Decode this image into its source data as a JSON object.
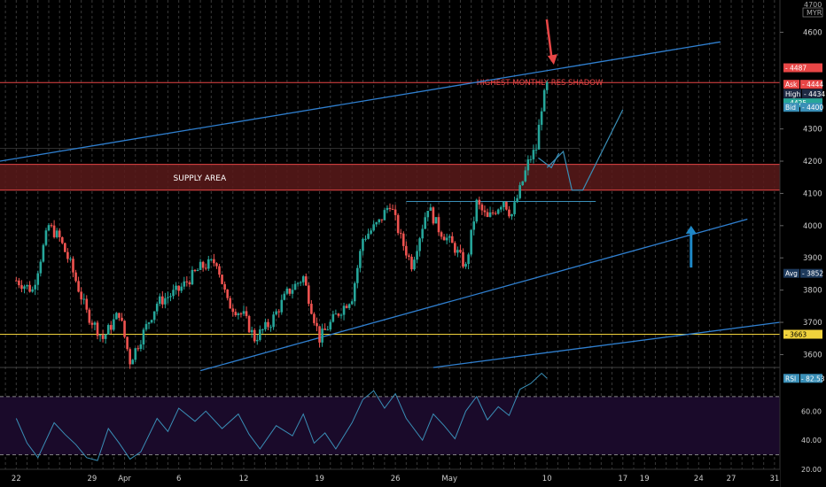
{
  "chart_data": [
    {
      "type": "candlestick",
      "panel": "price",
      "currency": "MYR",
      "axis_top_label": "4700",
      "ylim": [
        3560,
        4700
      ],
      "yticks": [
        3600,
        3700,
        3800,
        3900,
        4000,
        4100,
        4200,
        4300,
        4400,
        4500,
        4600
      ],
      "xticks": [
        {
          "label": "22",
          "day": 0
        },
        {
          "label": "29",
          "day": 7
        },
        {
          "label": "Apr",
          "day": 10
        },
        {
          "label": "6",
          "day": 15
        },
        {
          "label": "12",
          "day": 21
        },
        {
          "label": "19",
          "day": 28
        },
        {
          "label": "26",
          "day": 35
        },
        {
          "label": "May",
          "day": 40
        },
        {
          "label": "10",
          "day": 49
        },
        {
          "label": "17",
          "day": 56
        },
        {
          "label": "19",
          "day": 58
        },
        {
          "label": "24",
          "day": 63
        },
        {
          "label": "27",
          "day": 66
        },
        {
          "label": "31",
          "day": 70
        }
      ],
      "price_series": [
        [
          0,
          3830
        ],
        [
          1.5,
          3800
        ],
        [
          3,
          4000
        ],
        [
          4,
          3960
        ],
        [
          5,
          3880
        ],
        [
          6.5,
          3730
        ],
        [
          8,
          3650
        ],
        [
          9.5,
          3730
        ],
        [
          10.5,
          3580
        ],
        [
          11.5,
          3650
        ],
        [
          13,
          3760
        ],
        [
          15,
          3800
        ],
        [
          17,
          3870
        ],
        [
          18.5,
          3890
        ],
        [
          19.5,
          3760
        ],
        [
          21,
          3720
        ],
        [
          22,
          3650
        ],
        [
          23.5,
          3700
        ],
        [
          25,
          3790
        ],
        [
          26.5,
          3840
        ],
        [
          28,
          3650
        ],
        [
          29.5,
          3720
        ],
        [
          31,
          3780
        ],
        [
          32,
          3960
        ],
        [
          33.5,
          4010
        ],
        [
          34.5,
          4070
        ],
        [
          35.5,
          3960
        ],
        [
          36.5,
          3880
        ],
        [
          38,
          4060
        ],
        [
          39,
          3990
        ],
        [
          40.5,
          3930
        ],
        [
          41.5,
          3870
        ],
        [
          42.5,
          4070
        ],
        [
          43.5,
          4020
        ],
        [
          45,
          4080
        ],
        [
          45.7,
          4030
        ],
        [
          46.5,
          4110
        ],
        [
          47.3,
          4200
        ],
        [
          48,
          4240
        ],
        [
          48.5,
          4370
        ],
        [
          49,
          4434
        ]
      ],
      "levels": [
        {
          "name": "Ask",
          "value": 4444,
          "color": "#e84646"
        },
        {
          "name": "High",
          "value": 4434,
          "color": "#1e2a44"
        },
        {
          "name": "",
          "value": 4425,
          "color": "#26a69a"
        },
        {
          "name": "Bid",
          "value": 4400,
          "color": "#3a8fb7"
        },
        {
          "name": "Avg",
          "value": 3852,
          "color": "#1e3a5c"
        },
        {
          "name": "",
          "value": 3663,
          "color": "#f0d23c"
        },
        {
          "name": "",
          "value": 4487,
          "color": "#e84646"
        }
      ],
      "supply_area": {
        "label": "SUPPLY AREA",
        "low": 4110,
        "high": 4190,
        "color": "#5a1a1a"
      },
      "resistance": {
        "label": "HIGHEST MONTHLY RES SHADOW",
        "value": 4444,
        "color": "#e84646"
      },
      "consolidation_top": 4075
    },
    {
      "type": "line",
      "panel": "rsi",
      "name": "RSI",
      "last_value": 82.53,
      "ylim": [
        20,
        90
      ],
      "yticks": [
        20,
        40,
        60
      ],
      "ytick_labels": [
        "20.00",
        "40.00",
        "60.00"
      ],
      "bands": [
        30,
        70
      ],
      "band_color": "#1a0a2a",
      "series": [
        [
          0,
          55
        ],
        [
          1,
          38
        ],
        [
          2,
          28
        ],
        [
          3.5,
          52
        ],
        [
          4.5,
          44
        ],
        [
          5.5,
          37
        ],
        [
          6.5,
          28
        ],
        [
          7.5,
          26
        ],
        [
          8.5,
          48
        ],
        [
          9.5,
          38
        ],
        [
          10.5,
          27
        ],
        [
          11.5,
          32
        ],
        [
          13,
          55
        ],
        [
          14,
          46
        ],
        [
          15,
          62
        ],
        [
          16.5,
          53
        ],
        [
          17.5,
          60
        ],
        [
          19,
          48
        ],
        [
          20.5,
          58
        ],
        [
          21.5,
          44
        ],
        [
          22.5,
          34
        ],
        [
          24,
          50
        ],
        [
          25.5,
          43
        ],
        [
          26.5,
          58
        ],
        [
          27.5,
          38
        ],
        [
          28.5,
          45
        ],
        [
          29.5,
          34
        ],
        [
          31,
          52
        ],
        [
          32,
          68
        ],
        [
          33,
          74
        ],
        [
          34,
          62
        ],
        [
          35,
          72
        ],
        [
          36,
          55
        ],
        [
          37.5,
          40
        ],
        [
          38.5,
          58
        ],
        [
          39.5,
          50
        ],
        [
          40.5,
          41
        ],
        [
          41.5,
          60
        ],
        [
          42.5,
          70
        ],
        [
          43.5,
          54
        ],
        [
          44.5,
          63
        ],
        [
          45.5,
          57
        ],
        [
          46.5,
          75
        ],
        [
          47.5,
          79
        ],
        [
          48.5,
          86
        ],
        [
          49,
          82.53
        ]
      ],
      "color": "#3a8fb7"
    }
  ],
  "annotations": {
    "down_arrow_color": "#e84646",
    "up_arrow_color": "#1e88c7"
  }
}
